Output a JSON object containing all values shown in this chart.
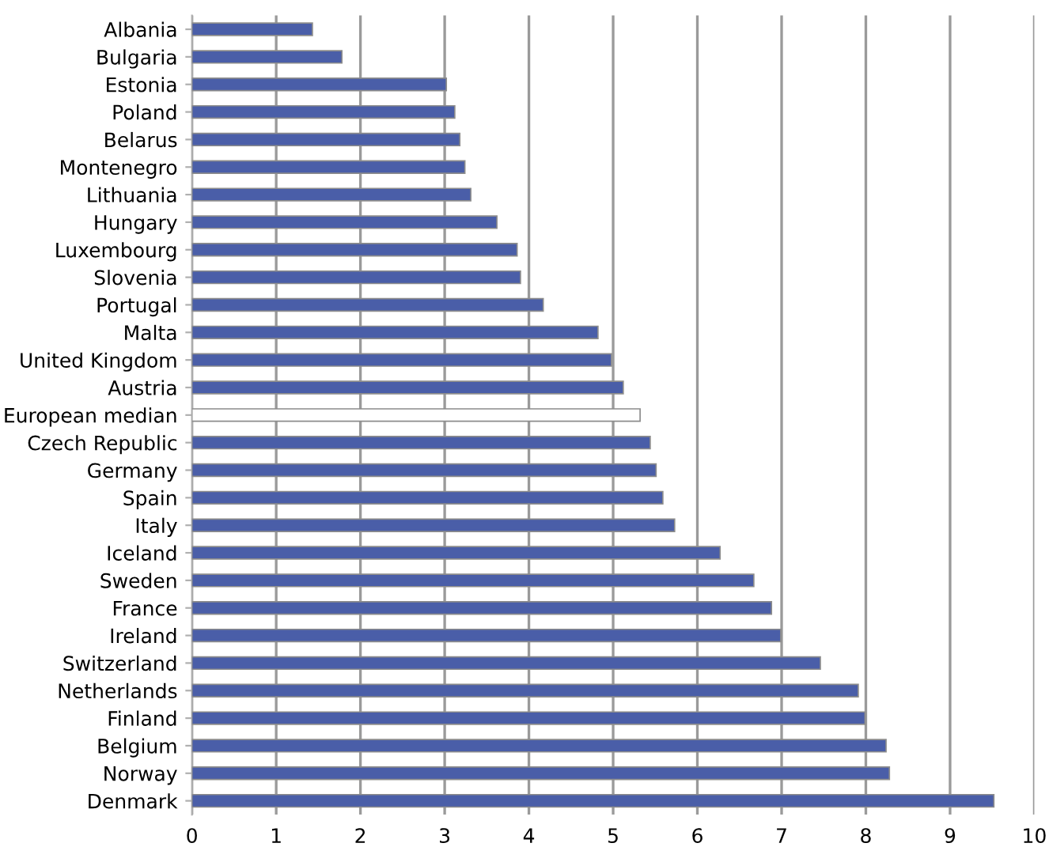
{
  "chart_data": {
    "type": "bar",
    "orientation": "horizontal",
    "categories": [
      "Albania",
      "Bulgaria",
      "Estonia",
      "Poland",
      "Belarus",
      "Montenegro",
      "Lithuania",
      "Hungary",
      "Luxembourg",
      "Slovenia",
      "Portugal",
      "Malta",
      "United Kingdom",
      "Austria",
      "European median",
      "Czech Republic",
      "Germany",
      "Spain",
      "Italy",
      "Iceland",
      "Sweden",
      "France",
      "Ireland",
      "Switzerland",
      "Netherlands",
      "Finland",
      "Belgium",
      "Norway",
      "Denmark"
    ],
    "values": [
      1.43,
      1.78,
      3.02,
      3.12,
      3.18,
      3.24,
      3.31,
      3.62,
      3.86,
      3.9,
      4.17,
      4.82,
      4.98,
      5.12,
      5.32,
      5.44,
      5.51,
      5.59,
      5.73,
      6.27,
      6.67,
      6.88,
      6.99,
      7.46,
      7.91,
      7.99,
      8.24,
      8.28,
      9.52
    ],
    "colors": [
      "#4a5ea8",
      "#4a5ea8",
      "#4a5ea8",
      "#4a5ea8",
      "#4a5ea8",
      "#4a5ea8",
      "#4a5ea8",
      "#4a5ea8",
      "#4a5ea8",
      "#4a5ea8",
      "#4a5ea8",
      "#4a5ea8",
      "#4a5ea8",
      "#4a5ea8",
      "#ffffff",
      "#4a5ea8",
      "#4a5ea8",
      "#4a5ea8",
      "#4a5ea8",
      "#4a5ea8",
      "#4a5ea8",
      "#4a5ea8",
      "#4a5ea8",
      "#4a5ea8",
      "#4a5ea8",
      "#4a5ea8",
      "#4a5ea8",
      "#4a5ea8",
      "#4a5ea8"
    ],
    "xlim": [
      0,
      10
    ],
    "xticks": [
      0,
      1,
      2,
      3,
      4,
      5,
      6,
      7,
      8,
      9,
      10
    ],
    "grid": "x"
  }
}
